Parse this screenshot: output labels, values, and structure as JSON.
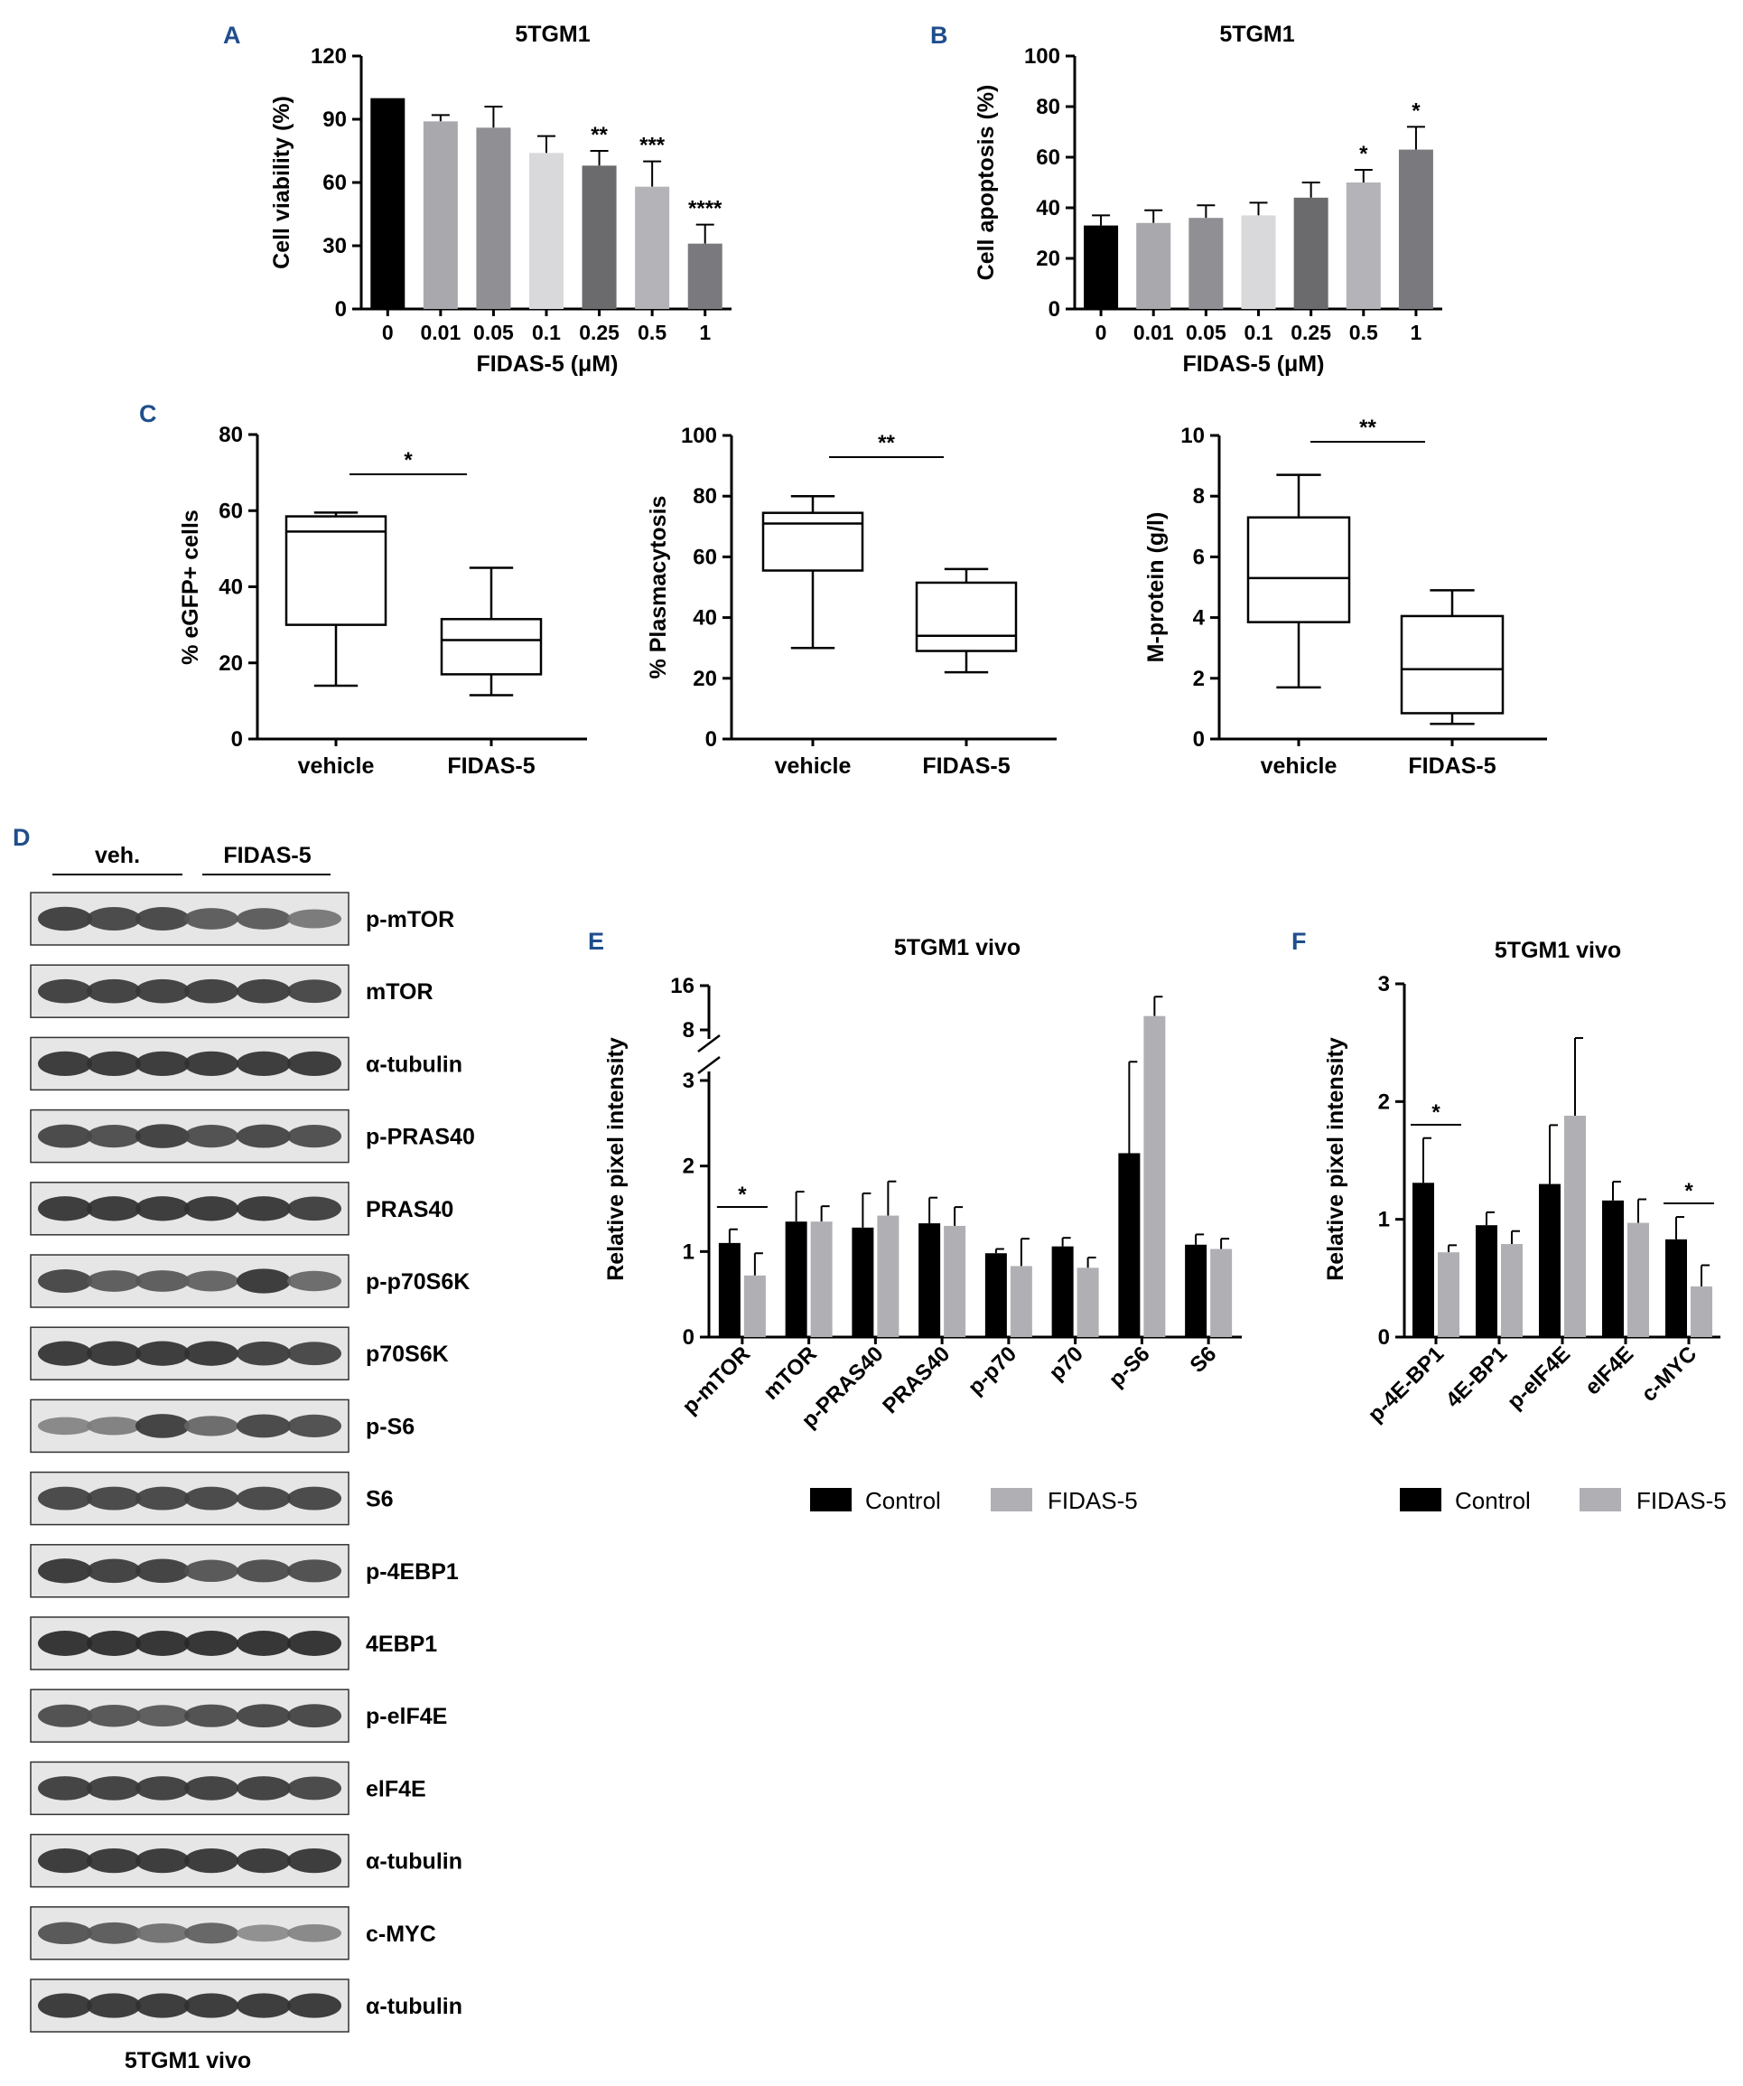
{
  "panels": {
    "A": {
      "letter": "A"
    },
    "B": {
      "letter": "B"
    },
    "C": {
      "letter": "C"
    },
    "D": {
      "letter": "D"
    },
    "E": {
      "letter": "E"
    },
    "F": {
      "letter": "F"
    }
  },
  "colors": {
    "panel_letter": "#1f4e8c",
    "control": "#000000",
    "fidas": "#b0b0b4",
    "grays": [
      "#000000",
      "#a8a8ad",
      "#8f8f94",
      "#d9d9dc",
      "#6b6b6e",
      "#b3b3b8",
      "#7a7a7e"
    ]
  },
  "chart_data": [
    {
      "id": "A",
      "type": "bar",
      "title": "5TGM1",
      "xlabel": "FIDAS-5 (μM)",
      "ylabel": "Cell viability (%)",
      "ylim": [
        0,
        120
      ],
      "yticks": [
        "0",
        "30",
        "60",
        "90",
        "120"
      ],
      "categories": [
        "0",
        "0.01",
        "0.05",
        "0.1",
        "0.25",
        "0.5",
        "1"
      ],
      "values": [
        100,
        89,
        86,
        74,
        68,
        58,
        31
      ],
      "errors": [
        0,
        3,
        10,
        8,
        7,
        12,
        9
      ],
      "annotations": [
        "",
        "",
        "",
        "",
        "**",
        "***",
        "****"
      ]
    },
    {
      "id": "B",
      "type": "bar",
      "title": "5TGM1",
      "xlabel": "FIDAS-5 (μM)",
      "ylabel": "Cell apoptosis (%)",
      "ylim": [
        0,
        100
      ],
      "yticks": [
        "0",
        "20",
        "40",
        "60",
        "80",
        "100"
      ],
      "categories": [
        "0",
        "0.01",
        "0.05",
        "0.1",
        "0.25",
        "0.5",
        "1"
      ],
      "values": [
        33,
        34,
        36,
        37,
        44,
        50,
        63
      ],
      "errors": [
        4,
        5,
        5,
        5,
        6,
        5,
        9
      ],
      "annotations": [
        "",
        "",
        "",
        "",
        "",
        "*",
        "*"
      ]
    },
    {
      "id": "C1",
      "type": "box",
      "ylabel": "% eGFP+ cells",
      "ylim": [
        0,
        80
      ],
      "yticks": [
        "0",
        "20",
        "40",
        "60",
        "80"
      ],
      "categories": [
        "vehicle",
        "FIDAS-5"
      ],
      "boxes": [
        {
          "min": 14,
          "q1": 30,
          "median": 54.5,
          "q3": 58.5,
          "max": 59.5
        },
        {
          "min": 11.5,
          "q1": 17,
          "median": 26,
          "q3": 31.5,
          "max": 45
        }
      ],
      "significance": "*"
    },
    {
      "id": "C2",
      "type": "box",
      "ylabel": "% Plasmacytosis",
      "ylim": [
        0,
        100
      ],
      "yticks": [
        "0",
        "20",
        "40",
        "60",
        "80",
        "100"
      ],
      "categories": [
        "vehicle",
        "FIDAS-5"
      ],
      "boxes": [
        {
          "min": 30,
          "q1": 55.5,
          "median": 71,
          "q3": 74.5,
          "max": 80
        },
        {
          "min": 22,
          "q1": 29,
          "median": 34,
          "q3": 51.5,
          "max": 56
        }
      ],
      "significance": "**"
    },
    {
      "id": "C3",
      "type": "box",
      "ylabel": "M-protein (g/l)",
      "ylim": [
        0,
        10
      ],
      "yticks": [
        "0",
        "2",
        "4",
        "6",
        "8",
        "10"
      ],
      "categories": [
        "vehicle",
        "FIDAS-5"
      ],
      "boxes": [
        {
          "min": 1.7,
          "q1": 3.85,
          "median": 5.3,
          "q3": 7.3,
          "max": 8.7
        },
        {
          "min": 0.5,
          "q1": 0.85,
          "median": 2.3,
          "q3": 4.05,
          "max": 4.9
        }
      ],
      "significance": "**"
    },
    {
      "id": "E",
      "type": "bar",
      "title": "5TGM1 vivo",
      "ylabel": "Relative pixel intensity",
      "ylim": [
        0,
        16
      ],
      "axis_break": "between 3 and 8",
      "yticks": [
        "0",
        "1",
        "2",
        "3",
        "8",
        "16"
      ],
      "categories": [
        "p-mTOR",
        "mTOR",
        "p-PRAS40",
        "PRAS40",
        "p-p70",
        "p70",
        "p-S6",
        "S6"
      ],
      "series": [
        {
          "name": "Control",
          "values": [
            1.1,
            1.35,
            1.28,
            1.33,
            0.98,
            1.06,
            2.15,
            1.08
          ],
          "errors": [
            0.16,
            0.35,
            0.4,
            0.3,
            0.05,
            0.1,
            2.7,
            0.12
          ]
        },
        {
          "name": "FIDAS-5",
          "values": [
            0.72,
            1.35,
            1.42,
            1.3,
            0.83,
            0.81,
            10.5,
            1.03
          ],
          "errors": [
            0.26,
            0.18,
            0.4,
            0.22,
            0.32,
            0.12,
            3.5,
            0.12
          ]
        }
      ],
      "significance": [
        {
          "category": "p-mTOR",
          "label": "*"
        }
      ]
    },
    {
      "id": "F",
      "type": "bar",
      "title": "5TGM1 vivo",
      "ylabel": "Relative pixel intensity",
      "ylim": [
        0,
        3
      ],
      "yticks": [
        "0",
        "1",
        "2",
        "3"
      ],
      "categories": [
        "p-4E-BP1",
        "4E-BP1",
        "p-eIF4E",
        "eIF4E",
        "c-MYC"
      ],
      "series": [
        {
          "name": "Control",
          "values": [
            1.31,
            0.95,
            1.3,
            1.16,
            0.83
          ],
          "errors": [
            0.38,
            0.11,
            0.5,
            0.16,
            0.19
          ]
        },
        {
          "name": "FIDAS-5",
          "values": [
            0.72,
            0.79,
            1.88,
            0.97,
            0.43
          ],
          "errors": [
            0.06,
            0.11,
            0.66,
            0.2,
            0.18
          ]
        }
      ],
      "significance": [
        {
          "category": "p-4E-BP1",
          "label": "*"
        },
        {
          "category": "c-MYC",
          "label": "*"
        }
      ]
    }
  ],
  "western_blot": {
    "groups": [
      "veh.",
      "FIDAS-5"
    ],
    "caption": "5TGM1 vivo",
    "bands": [
      {
        "label": "p-mTOR",
        "intensity": [
          0.9,
          0.85,
          0.85,
          0.7,
          0.7,
          0.5
        ]
      },
      {
        "label": "mTOR",
        "intensity": [
          0.9,
          0.9,
          0.9,
          0.9,
          0.9,
          0.85
        ]
      },
      {
        "label": "α-tubulin",
        "intensity": [
          0.95,
          0.95,
          0.95,
          0.95,
          0.95,
          0.95
        ]
      },
      {
        "label": "p-PRAS40",
        "intensity": [
          0.85,
          0.8,
          0.9,
          0.8,
          0.85,
          0.8
        ]
      },
      {
        "label": "PRAS40",
        "intensity": [
          0.95,
          0.95,
          0.95,
          0.95,
          0.95,
          0.9
        ]
      },
      {
        "label": "p-p70S6K",
        "intensity": [
          0.85,
          0.7,
          0.7,
          0.65,
          0.95,
          0.6
        ]
      },
      {
        "label": "p70S6K",
        "intensity": [
          0.95,
          0.95,
          0.95,
          0.95,
          0.9,
          0.85
        ]
      },
      {
        "label": "p-S6",
        "intensity": [
          0.4,
          0.45,
          0.9,
          0.6,
          0.85,
          0.8
        ]
      },
      {
        "label": "S6",
        "intensity": [
          0.85,
          0.85,
          0.85,
          0.85,
          0.85,
          0.85
        ]
      },
      {
        "label": "p-4EBP1",
        "intensity": [
          0.95,
          0.9,
          0.9,
          0.75,
          0.8,
          0.8
        ]
      },
      {
        "label": "4EBP1",
        "intensity": [
          1,
          1,
          1,
          1,
          1,
          1
        ]
      },
      {
        "label": "p-elF4E",
        "intensity": [
          0.8,
          0.75,
          0.7,
          0.8,
          0.85,
          0.85
        ]
      },
      {
        "label": "elF4E",
        "intensity": [
          0.9,
          0.9,
          0.9,
          0.9,
          0.9,
          0.85
        ]
      },
      {
        "label": "α-tubulin",
        "intensity": [
          0.95,
          0.95,
          0.95,
          0.95,
          0.95,
          0.95
        ]
      },
      {
        "label": "c-MYC",
        "intensity": [
          0.75,
          0.7,
          0.55,
          0.65,
          0.35,
          0.4
        ]
      },
      {
        "label": "α-tubulin",
        "intensity": [
          0.95,
          0.95,
          0.95,
          0.95,
          0.95,
          0.95
        ]
      }
    ]
  }
}
